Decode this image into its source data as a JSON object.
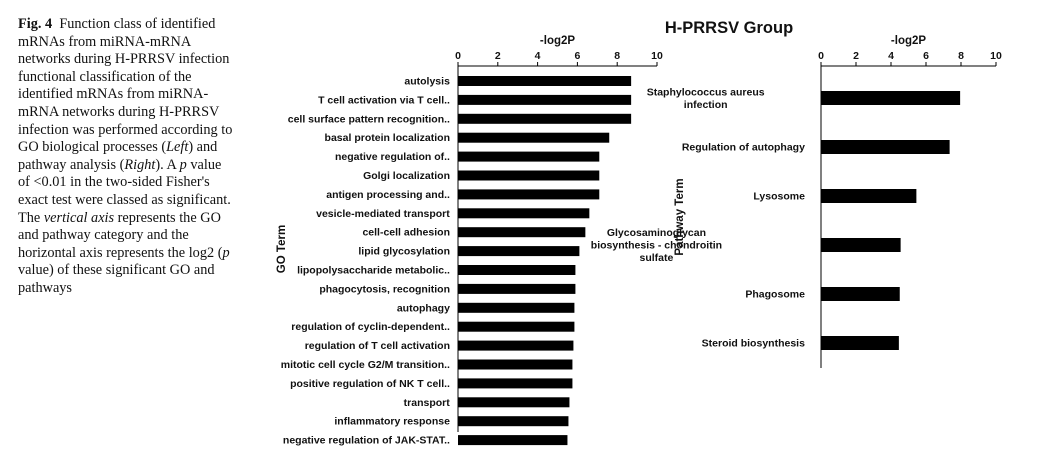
{
  "caption": {
    "fig_label": "Fig. 4",
    "seg1": "Function class of identified mRNAs from miRNA-mRNA networks during H-PRRSV infection functional classification of the identified mRNAs from miRNA-mRNA networks during H-PRRSV infection was performed according to GO biological processes (",
    "left_word": "Left",
    "seg2": ") and pathway analysis (",
    "right_word": "Right",
    "seg3": "). A ",
    "p_letter": "p",
    "seg4": " value of <0.01 in the two-sided Fisher's exact test were classed as significant. The ",
    "vertical_axis": "vertical axis",
    "seg5": " represents the GO and pathway category and the horizontal axis represents the log2 (",
    "p_letter2": "p",
    "seg6": " value) of these significant GO and pathways"
  },
  "group_title": "H-PRRSV Group",
  "colors": {
    "bar": "#000000",
    "axis": "#000000",
    "text": "#111111"
  },
  "chart_data": [
    {
      "type": "bar",
      "orientation": "horizontal",
      "title": "",
      "xlabel": "-log2P",
      "ylabel": "GO Term",
      "xlim": [
        0,
        10
      ],
      "xticks": [
        0,
        2,
        4,
        6,
        8,
        10
      ],
      "grid": false,
      "categories": [
        "autolysis",
        "T cell activation via T cell..",
        "cell surface pattern recognition..",
        "basal protein localization",
        "negative regulation of..",
        "Golgi localization",
        "antigen processing and..",
        "vesicle-mediated transport",
        "cell-cell adhesion",
        "lipid glycosylation",
        "lipopolysaccharide metabolic..",
        "phagocytosis, recognition",
        "autophagy",
        "regulation of cyclin-dependent..",
        "regulation of T cell activation",
        "mitotic cell cycle G2/M transition..",
        "positive regulation of NK T cell..",
        "transport",
        "inflammatory response",
        "negative regulation of JAK-STAT.."
      ],
      "values": [
        8.7,
        8.7,
        8.7,
        7.6,
        7.1,
        7.1,
        7.1,
        6.6,
        6.4,
        6.1,
        5.9,
        5.9,
        5.85,
        5.85,
        5.8,
        5.75,
        5.75,
        5.6,
        5.55,
        5.5
      ]
    },
    {
      "type": "bar",
      "orientation": "horizontal",
      "title": "",
      "xlabel": "-log2P",
      "ylabel": "Pathway Term",
      "xlim": [
        0,
        10
      ],
      "xticks": [
        0,
        2,
        4,
        6,
        8,
        10
      ],
      "grid": false,
      "categories": [
        [
          "Staphylococcus aureus",
          "infection"
        ],
        [
          "Regulation of autophagy"
        ],
        [
          "Lysosome"
        ],
        [
          "Glycosaminoglycan",
          "biosynthesis - chondroitin",
          "sulfate"
        ],
        [
          "Phagosome"
        ],
        [
          "Steroid biosynthesis"
        ]
      ],
      "values": [
        7.95,
        7.35,
        5.45,
        4.55,
        4.5,
        4.45
      ]
    }
  ]
}
